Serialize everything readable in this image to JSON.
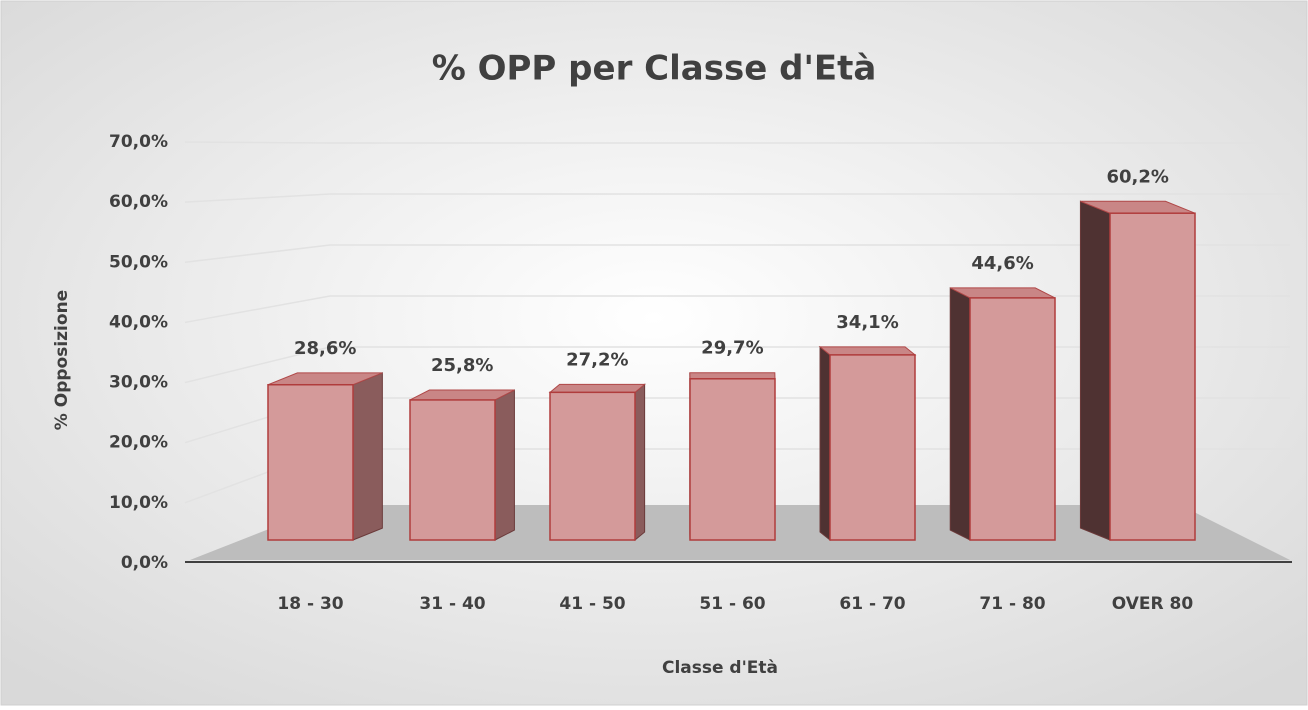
{
  "chart_data": {
    "type": "bar3d",
    "title": "% OPP per Classe d'Età",
    "y_label": "% Opposizione",
    "x_label": "Classe d'Età",
    "categories": [
      "18 - 30",
      "31 - 40",
      "41 - 50",
      "51 - 60",
      "61 - 70",
      "71 - 80",
      "OVER 80"
    ],
    "values": [
      28.6,
      25.8,
      27.2,
      29.7,
      34.1,
      44.6,
      60.2
    ],
    "value_labels": [
      "28,6%",
      "25,8%",
      "27,2%",
      "29,7%",
      "34,1%",
      "44,6%",
      "60,2%"
    ],
    "color": "#d49a9a",
    "ylim": [
      0,
      70
    ],
    "yticks": [
      {
        "value": 0,
        "label": "0,0%"
      },
      {
        "value": 10,
        "label": "10,0%"
      },
      {
        "value": 20,
        "label": "20,0%"
      },
      {
        "value": 30,
        "label": "30,0%"
      },
      {
        "value": 40,
        "label": "40,0%"
      },
      {
        "value": 50,
        "label": "50,0%"
      },
      {
        "value": 60,
        "label": "60,0%"
      },
      {
        "value": 70,
        "label": "70,0%"
      }
    ],
    "grid": true
  }
}
